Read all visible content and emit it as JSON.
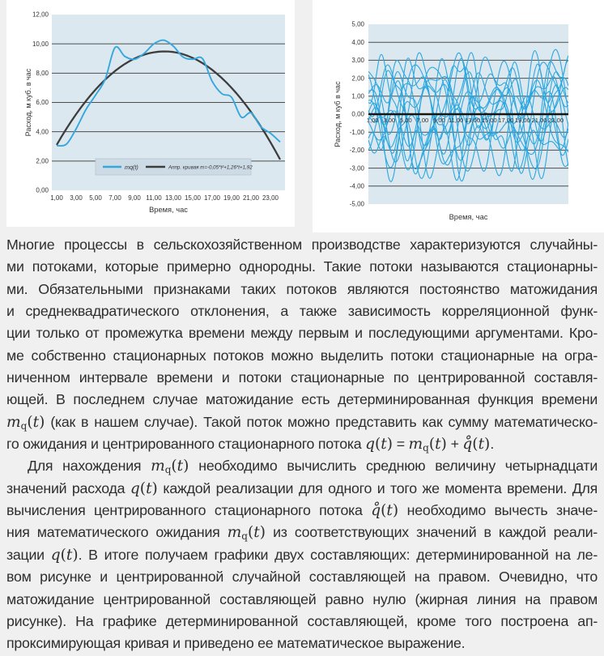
{
  "colors": {
    "page_bg": "#f0f0f0",
    "panel_bg": "#ffffff",
    "plot_bg": "#dce8ef",
    "grid_line": "#4d4d4d",
    "zero_line": "#161616",
    "series_blue": "#35a7dd",
    "series_blue_right": "#2ba7e0",
    "approx_dark": "#3d3d3d",
    "legend_bg": "#ccdbe5",
    "legend_border": "#b3c3cd",
    "text": "#2e2e2e"
  },
  "chart_data": [
    {
      "type": "line",
      "title": "",
      "xlabel": "Время, час",
      "ylabel": "Расход, м куб. в час",
      "xlim": [
        0.5,
        24.5
      ],
      "ylim": [
        0,
        12
      ],
      "xticks": [
        1,
        3,
        5,
        7,
        9,
        11,
        13,
        15,
        17,
        19,
        21,
        23
      ],
      "yticks": [
        0,
        2,
        4,
        6,
        8,
        10,
        12
      ],
      "grid_values": [
        2,
        4,
        6,
        8,
        10
      ],
      "grid": "horizontal",
      "legend_position": "bottom-inside",
      "x": [
        1,
        2,
        3,
        4,
        5,
        6,
        7,
        8,
        9,
        10,
        11,
        12,
        13,
        14,
        15,
        16,
        17,
        18,
        19,
        20,
        21,
        22,
        23,
        24
      ],
      "series": [
        {
          "name": "mq(t)",
          "values": [
            3.05,
            3.15,
            4.2,
            5.5,
            6.5,
            7.6,
            9.75,
            9.15,
            8.95,
            9.35,
            10.0,
            10.25,
            9.85,
            9.1,
            8.95,
            9.0,
            7.45,
            6.6,
            6.35,
            5.0,
            5.3,
            4.35,
            3.9,
            3.3
          ]
        },
        {
          "name": "Аппр. кривая m=-0,05*t²+1,26*t+1,92",
          "poly": {
            "a": -0.052,
            "b": 1.2565,
            "c": 1.896
          },
          "t_range": [
            1,
            24
          ]
        }
      ]
    },
    {
      "type": "line",
      "title": "",
      "xlabel": "Время, час",
      "ylabel": "Расход, м куб в час",
      "xlim": [
        0.5,
        24.5
      ],
      "ylim": [
        -5,
        5
      ],
      "xticks": [
        1,
        3,
        5,
        7,
        9,
        11,
        13,
        15,
        17,
        19,
        21,
        23
      ],
      "yticks": [
        -5,
        -4,
        -3,
        -2,
        -1,
        0,
        1,
        2,
        3,
        4,
        5
      ],
      "grid_values": [
        -4,
        -3,
        -2,
        -1,
        1,
        2,
        3,
        4
      ],
      "grid": "horizontal",
      "zero_line": {
        "value": 0,
        "bold": true,
        "note": "матожидание центрированной составляющей равно нулю — жирная линия"
      },
      "series_note": "14 реализаций центрированного случайного потока q̊(t); кривые заданы суммами гармоник [амплитуда, период ч, фаза рад]",
      "realizations": [
        [
          [
            2.0,
            9.5,
            0.3
          ],
          [
            1.1,
            4.6,
            2.0
          ],
          [
            0.6,
            2.7,
            4.1
          ]
        ],
        [
          [
            1.7,
            11.2,
            1.7
          ],
          [
            1.3,
            5.3,
            0.8
          ],
          [
            0.5,
            3.1,
            3.3
          ]
        ],
        [
          [
            2.2,
            8.1,
            4.4
          ],
          [
            0.9,
            4.1,
            1.2
          ],
          [
            0.6,
            2.4,
            5.0
          ]
        ],
        [
          [
            1.6,
            10.4,
            2.9
          ],
          [
            1.2,
            6.2,
            4.8
          ],
          [
            0.7,
            3.4,
            1.0
          ]
        ],
        [
          [
            2.1,
            7.4,
            5.6
          ],
          [
            1.0,
            4.9,
            2.6
          ],
          [
            0.5,
            2.2,
            0.4
          ]
        ],
        [
          [
            1.8,
            12.6,
            0.9
          ],
          [
            1.4,
            5.8,
            3.9
          ],
          [
            0.6,
            2.9,
            2.2
          ]
        ],
        [
          [
            2.3,
            9.0,
            3.5
          ],
          [
            0.8,
            3.8,
            5.3
          ],
          [
            0.7,
            2.5,
            1.6
          ]
        ],
        [
          [
            1.5,
            10.9,
            5.0
          ],
          [
            1.3,
            6.6,
            1.4
          ],
          [
            0.6,
            3.0,
            4.6
          ]
        ],
        [
          [
            2.0,
            8.6,
            2.2
          ],
          [
            1.1,
            4.3,
            0.2
          ],
          [
            0.7,
            2.8,
            3.8
          ]
        ],
        [
          [
            1.9,
            11.8,
            4.0
          ],
          [
            1.2,
            5.1,
            5.8
          ],
          [
            0.5,
            2.3,
            2.8
          ]
        ],
        [
          [
            2.2,
            7.9,
            1.1
          ],
          [
            1.0,
            4.7,
            3.1
          ],
          [
            0.6,
            3.2,
            0.7
          ]
        ],
        [
          [
            1.6,
            9.8,
            5.9
          ],
          [
            1.4,
            6.0,
            2.4
          ],
          [
            0.7,
            2.6,
            4.9
          ]
        ],
        [
          [
            2.1,
            10.1,
            0.6
          ],
          [
            0.9,
            4.4,
            4.3
          ],
          [
            0.6,
            2.1,
            1.9
          ]
        ],
        [
          [
            1.8,
            8.3,
            3.0
          ],
          [
            1.3,
            5.5,
            0.5
          ],
          [
            0.5,
            3.6,
            5.5
          ]
        ]
      ]
    }
  ],
  "text": {
    "lines": [
      {
        "t": "Многие процессы в сельскохозяйственном производстве характеризуются случайны-",
        "j": true,
        "ind": false
      },
      {
        "t": "ми потоками, которые примерно однородны. Такие потоки называются стационарны-",
        "j": true,
        "ind": false
      },
      {
        "t": "ми. Обязательными признаками таких потоков являются постоянство матожидания",
        "j": true,
        "ind": false
      },
      {
        "t": "и среднеквадратического отклонения, а также зависимость корреляционной функ-",
        "j": true,
        "ind": false
      },
      {
        "t": "ции только от промежутка времени между первым и последующими аргументами. Кро-",
        "j": true,
        "ind": false
      },
      {
        "t": "ме собственно стационарных потоков можно выделить потоки стационарные на огра-",
        "j": true,
        "ind": false
      },
      {
        "t": "ниченном интервале времени и потоки стационарные по центрированной составля-",
        "j": true,
        "ind": false
      },
      {
        "t": "ющей. В последнем случае матожидание есть детерминированная функция времени",
        "j": true,
        "ind": false
      },
      {
        "t": "mq(t) (как в нашем случае). Такой поток можно представить как сумму математическо-",
        "j": true,
        "ind": false
      },
      {
        "t": "го ожидания и центрированного стационарного потока q(t) = mq(t) + q̊(t).",
        "j": false,
        "ind": false
      },
      {
        "t": "Для нахождения mq(t) необходимо вычислить среднюю величину четырнадцати",
        "j": true,
        "ind": true
      },
      {
        "t": "значений расхода q(t) каждой реализации для одного и того же момента времени. Для",
        "j": true,
        "ind": false
      },
      {
        "t": "вычисления центрированного стационарного потока q̊(t) необходимо вычесть значе-",
        "j": true,
        "ind": false
      },
      {
        "t": "ния математического ожидания mq(t) из соответствующих значений в каждой реали-",
        "j": true,
        "ind": false
      },
      {
        "t": "зации q(t). В итоге получаем графики двух составляющих: детерминированной на ле-",
        "j": true,
        "ind": false
      },
      {
        "t": "вом рисунке и центрированной случайной составляющей на правом. Очевидно, что",
        "j": true,
        "ind": false
      },
      {
        "t": "матожидание центрированной составляющей равно нулю (жирная линия на правом",
        "j": true,
        "ind": false
      },
      {
        "t": "рисунке). На графике детерминированной составляющей, кроме того построена ап-",
        "j": true,
        "ind": false
      },
      {
        "t": "проксимирующая кривая и приведено ее математическое выражение.",
        "j": false,
        "ind": false
      }
    ]
  }
}
